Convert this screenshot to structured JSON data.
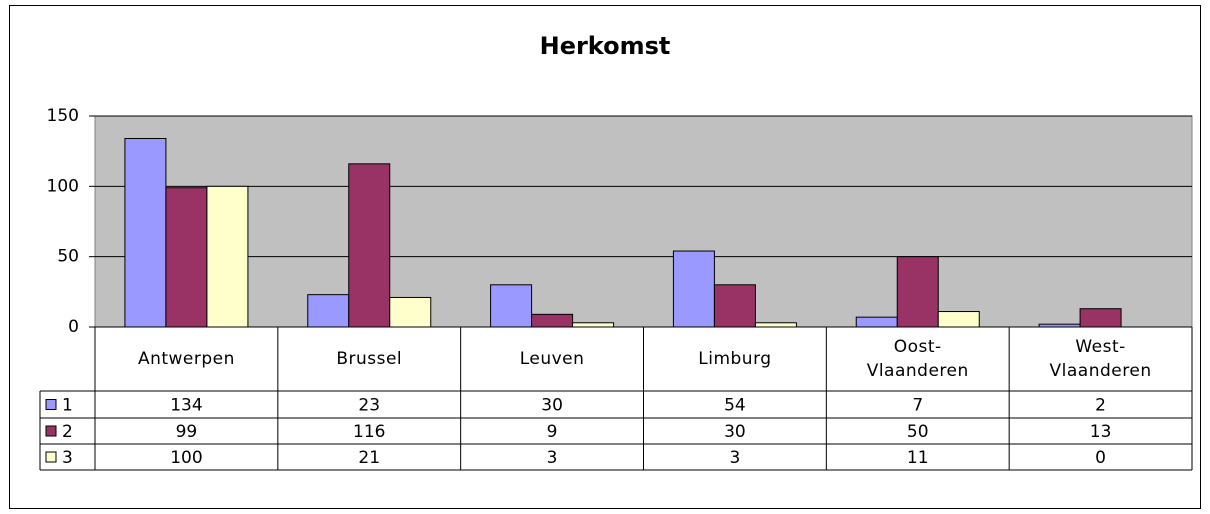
{
  "chart_data": {
    "type": "bar",
    "title": "Herkomst",
    "categories": [
      "Antwerpen",
      "Brussel",
      "Leuven",
      "Limburg",
      "Oost-Vlaanderen",
      "West-Vlaanderen"
    ],
    "series": [
      {
        "name": "1",
        "color": "#9999ff",
        "values": [
          134,
          23,
          30,
          54,
          7,
          2
        ]
      },
      {
        "name": "2",
        "color": "#993366",
        "values": [
          99,
          116,
          9,
          30,
          50,
          13
        ]
      },
      {
        "name": "3",
        "color": "#ffffcc",
        "values": [
          100,
          21,
          3,
          3,
          11,
          0
        ]
      }
    ],
    "ylim": [
      0,
      150
    ],
    "yticks": [
      0,
      50,
      100,
      150
    ],
    "grid": true,
    "plot_background": "#c0c0c0"
  }
}
